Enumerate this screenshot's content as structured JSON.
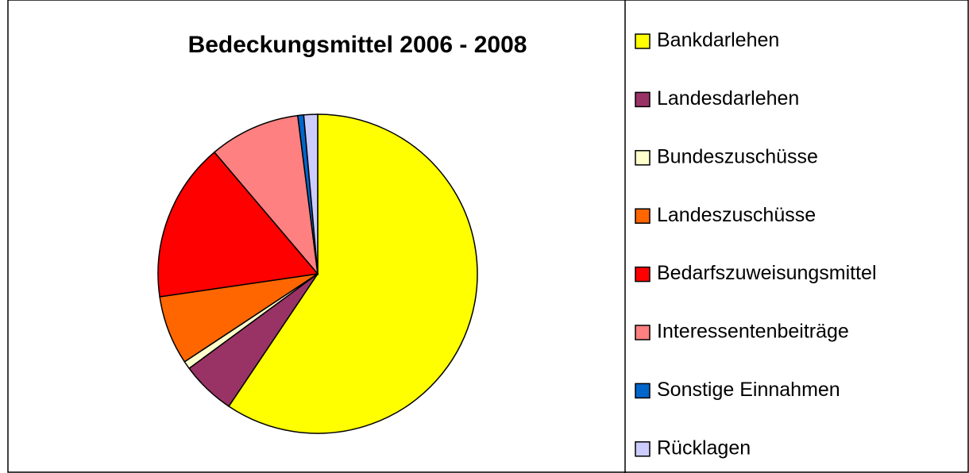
{
  "chart_data": {
    "type": "pie",
    "title": "Bedeckungsmittel 2006 - 2008",
    "categories": [
      "Bankdarlehen",
      "Landesdarlehen",
      "Bundeszuschüsse",
      "Landeszuschüsse",
      "Bedarfszuweisungsmittel",
      "Interessentenbeiträge",
      "Sonstige Einnahmen",
      "Rücklagen"
    ],
    "values": [
      59.4,
      5.5,
      0.8,
      7,
      16.1,
      9.2,
      0.6,
      1.4
    ],
    "colors": [
      "#ffff00",
      "#993366",
      "#ffffcc",
      "#ff6600",
      "#ff0000",
      "#ff8080",
      "#0066cc",
      "#ccccff"
    ],
    "legend": "right"
  }
}
